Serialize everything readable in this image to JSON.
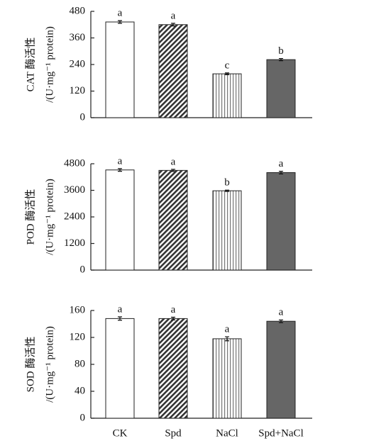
{
  "chart_data": [
    {
      "type": "bar",
      "ylabel": [
        "CAT 酶活性",
        "/(U·mg⁻¹ protein)"
      ],
      "categories": [
        null,
        null,
        null,
        null
      ],
      "values": [
        432,
        420,
        198,
        262
      ],
      "errors": [
        6,
        6,
        4,
        5
      ],
      "annotations": [
        "a",
        "a",
        "c",
        "b"
      ],
      "ylim": [
        0,
        480
      ],
      "yticks": [
        0,
        120,
        240,
        360,
        480
      ]
    },
    {
      "type": "bar",
      "ylabel": [
        "POD 酶活性",
        "/(U·mg⁻¹ protein)"
      ],
      "categories": [
        null,
        null,
        null,
        null
      ],
      "values": [
        4520,
        4500,
        3580,
        4400
      ],
      "errors": [
        60,
        50,
        30,
        60
      ],
      "annotations": [
        "a",
        "a",
        "b",
        "a"
      ],
      "ylim": [
        0,
        4800
      ],
      "yticks": [
        0,
        1200,
        2400,
        3600,
        4800
      ]
    },
    {
      "type": "bar",
      "ylabel": [
        "SOD 酶活性",
        "/(U·mg⁻¹ protein)"
      ],
      "categories": [
        "CK",
        "Spd",
        "NaCl",
        "Spd+NaCl"
      ],
      "values": [
        148,
        148,
        118,
        144
      ],
      "errors": [
        2.5,
        2,
        3,
        2
      ],
      "annotations": [
        "a",
        "a",
        "a",
        "a"
      ],
      "ylim": [
        0,
        160
      ],
      "yticks": [
        0,
        40,
        80,
        120,
        160
      ]
    }
  ]
}
